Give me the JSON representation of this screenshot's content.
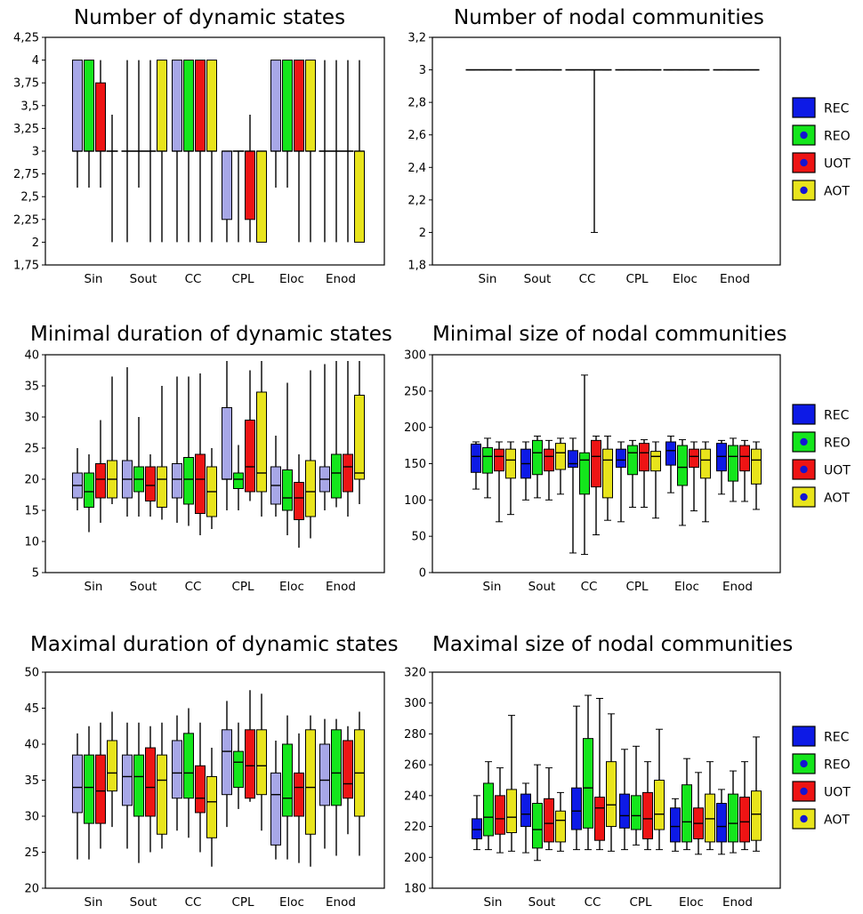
{
  "colors": {
    "REC_light": "#a7a7e7",
    "REC": "#0d1ae6",
    "REO": "#14e61c",
    "UOT": "#ee1414",
    "AOT": "#e8e41c",
    "marker": "#1414d2"
  },
  "legend": {
    "series": [
      "REC",
      "REO",
      "UOT",
      "AOT"
    ]
  },
  "chart_data": [
    {
      "type": "boxplot",
      "title": "Number of dynamic states",
      "yticks": [
        "1,75",
        "2",
        "2,25",
        "2,5",
        "2,75",
        "3",
        "3,25",
        "3,5",
        "3,75",
        "4",
        "4,25"
      ],
      "ylim": [
        1.75,
        4.25
      ],
      "categories": [
        "Sin",
        "Sout",
        "CC",
        "CPL",
        "Eloc",
        "Enod"
      ],
      "series": [
        "REC",
        "REO",
        "UOT",
        "AOT"
      ],
      "rec_style": "light",
      "boxes": [
        [
          [
            2.6,
            3,
            3,
            4,
            4
          ],
          [
            2.6,
            3,
            3,
            4,
            4
          ],
          [
            2.6,
            3,
            3,
            3.75,
            4
          ],
          [
            2,
            3,
            3,
            3,
            3.4
          ]
        ],
        [
          [
            2,
            3,
            3,
            3,
            4
          ],
          [
            2.6,
            3,
            3,
            3,
            4
          ],
          [
            2,
            3,
            3,
            3,
            4
          ],
          [
            2,
            3,
            3,
            4,
            4
          ]
        ],
        [
          [
            2,
            3,
            3,
            4,
            4
          ],
          [
            2,
            3,
            3,
            4,
            4
          ],
          [
            2,
            3,
            3,
            4,
            4
          ],
          [
            2,
            3,
            3,
            4,
            4
          ]
        ],
        [
          [
            2,
            2.25,
            3,
            3,
            3
          ],
          [
            2,
            3,
            3,
            3,
            3
          ],
          [
            2,
            2.25,
            3,
            3,
            3.4
          ],
          [
            2,
            2,
            3,
            3,
            3
          ]
        ],
        [
          [
            2.6,
            3,
            3,
            4,
            4
          ],
          [
            2.6,
            3,
            3,
            4,
            4
          ],
          [
            2,
            3,
            3,
            4,
            4
          ],
          [
            2,
            3,
            3,
            4,
            4
          ]
        ],
        [
          [
            2,
            3,
            3,
            3,
            4
          ],
          [
            2,
            3,
            3,
            3,
            4
          ],
          [
            2,
            3,
            3,
            3,
            4
          ],
          [
            2,
            2,
            3,
            3,
            4
          ]
        ]
      ]
    },
    {
      "type": "boxplot",
      "title": "Number of nodal communities",
      "yticks": [
        "1,8",
        "2",
        "2,2",
        "2,4",
        "2,6",
        "2,8",
        "3",
        "3,2"
      ],
      "ylim": [
        1.8,
        3.2
      ],
      "categories": [
        "Sin",
        "Sout",
        "CC",
        "CPL",
        "Eloc",
        "Enod"
      ],
      "series": [
        "REC",
        "REO",
        "UOT",
        "AOT"
      ],
      "rec_style": "dark",
      "boxes": [
        [
          [
            3,
            3,
            3,
            3,
            3
          ],
          [
            3,
            3,
            3,
            3,
            3
          ],
          [
            3,
            3,
            3,
            3,
            3
          ],
          [
            3,
            3,
            3,
            3,
            3
          ]
        ],
        [
          [
            3,
            3,
            3,
            3,
            3
          ],
          [
            3,
            3,
            3,
            3,
            3
          ],
          [
            3,
            3,
            3,
            3,
            3
          ],
          [
            3,
            3,
            3,
            3,
            3
          ]
        ],
        [
          [
            3,
            3,
            3,
            3,
            3
          ],
          [
            3,
            3,
            3,
            3,
            3
          ],
          [
            2,
            3,
            3,
            3,
            3
          ],
          [
            3,
            3,
            3,
            3,
            3
          ]
        ],
        [
          [
            3,
            3,
            3,
            3,
            3
          ],
          [
            3,
            3,
            3,
            3,
            3
          ],
          [
            3,
            3,
            3,
            3,
            3
          ],
          [
            3,
            3,
            3,
            3,
            3
          ]
        ],
        [
          [
            3,
            3,
            3,
            3,
            3
          ],
          [
            3,
            3,
            3,
            3,
            3
          ],
          [
            3,
            3,
            3,
            3,
            3
          ],
          [
            3,
            3,
            3,
            3,
            3
          ]
        ],
        [
          [
            3,
            3,
            3,
            3,
            3
          ],
          [
            3,
            3,
            3,
            3,
            3
          ],
          [
            3,
            3,
            3,
            3,
            3
          ],
          [
            3,
            3,
            3,
            3,
            3
          ]
        ]
      ]
    },
    {
      "type": "boxplot",
      "title": "Minimal duration of dynamic states",
      "yticks": [
        "5",
        "10",
        "15",
        "20",
        "25",
        "30",
        "35",
        "40"
      ],
      "ylim": [
        5,
        40
      ],
      "categories": [
        "Sin",
        "Sout",
        "CC",
        "CPL",
        "Eloc",
        "Enod"
      ],
      "series": [
        "REC",
        "REO",
        "UOT",
        "AOT"
      ],
      "rec_style": "light",
      "boxes": [
        [
          [
            15,
            17,
            19,
            21,
            25
          ],
          [
            11.5,
            15.5,
            18,
            21,
            24
          ],
          [
            13,
            17,
            20,
            22.5,
            29.5
          ],
          [
            16,
            17,
            20,
            23,
            36.5
          ]
        ],
        [
          [
            14,
            17,
            20,
            23,
            38
          ],
          [
            14,
            18,
            20,
            22,
            30
          ],
          [
            14,
            16.5,
            19,
            22,
            24
          ],
          [
            13.5,
            15.5,
            20,
            22,
            35
          ]
        ],
        [
          [
            13,
            17,
            20,
            22.5,
            36.5
          ],
          [
            12.5,
            16,
            20,
            23.5,
            36.5
          ],
          [
            11,
            14.5,
            20,
            24,
            37
          ],
          [
            12,
            14,
            18,
            22,
            25
          ]
        ],
        [
          [
            15,
            20,
            20,
            31.5,
            39
          ],
          [
            15,
            18.5,
            20,
            21,
            25.5
          ],
          [
            16.5,
            18,
            22,
            29.5,
            37.5
          ],
          [
            14,
            18,
            21,
            34,
            39
          ]
        ],
        [
          [
            14,
            16,
            19,
            22,
            27
          ],
          [
            11,
            15,
            17,
            21.5,
            35.5
          ],
          [
            9,
            13.5,
            17,
            19.5,
            24
          ],
          [
            10.5,
            14,
            18,
            23,
            37.5
          ]
        ],
        [
          [
            15,
            18,
            20,
            22,
            38.5
          ],
          [
            15.5,
            17,
            21,
            24,
            39
          ],
          [
            14,
            18,
            22,
            24,
            39
          ],
          [
            16,
            20,
            21,
            33.5,
            39
          ]
        ]
      ]
    },
    {
      "type": "boxplot",
      "title": "Minimal size of nodal communities",
      "yticks": [
        "0",
        "50",
        "100",
        "150",
        "200",
        "250",
        "300"
      ],
      "ylim": [
        0,
        300
      ],
      "categories": [
        "Sin",
        "Sout",
        "CC",
        "CPL",
        "Eloc",
        "Enod"
      ],
      "series": [
        "REC",
        "REO",
        "UOT",
        "AOT"
      ],
      "rec_style": "dark",
      "boxes": [
        [
          [
            115,
            138,
            160,
            177,
            180
          ],
          [
            103,
            137,
            160,
            172,
            185
          ],
          [
            70,
            140,
            160,
            170,
            180
          ],
          [
            80,
            130,
            155,
            170,
            180
          ]
        ],
        [
          [
            100,
            130,
            150,
            170,
            180
          ],
          [
            103,
            135,
            165,
            182,
            188
          ],
          [
            100,
            140,
            160,
            170,
            182
          ],
          [
            108,
            142,
            165,
            178,
            185
          ]
        ],
        [
          [
            27,
            145,
            150,
            168,
            185
          ],
          [
            25,
            108,
            155,
            165,
            272
          ],
          [
            52,
            118,
            160,
            182,
            188
          ],
          [
            72,
            103,
            155,
            170,
            188
          ]
        ],
        [
          [
            70,
            145,
            155,
            170,
            180
          ],
          [
            90,
            135,
            165,
            175,
            182
          ],
          [
            90,
            140,
            165,
            178,
            183
          ],
          [
            75,
            140,
            160,
            167,
            180
          ]
        ],
        [
          [
            110,
            148,
            168,
            180,
            188
          ],
          [
            65,
            120,
            145,
            175,
            183
          ],
          [
            85,
            145,
            160,
            170,
            180
          ],
          [
            70,
            130,
            155,
            170,
            180
          ]
        ],
        [
          [
            108,
            140,
            160,
            178,
            182
          ],
          [
            98,
            126,
            160,
            175,
            185
          ],
          [
            98,
            140,
            160,
            175,
            182
          ],
          [
            87,
            122,
            155,
            170,
            180
          ]
        ]
      ]
    },
    {
      "type": "boxplot",
      "title": "Maximal duration of dynamic states",
      "yticks": [
        "20",
        "25",
        "30",
        "35",
        "40",
        "45",
        "50"
      ],
      "ylim": [
        20,
        50
      ],
      "categories": [
        "Sin",
        "Sout",
        "CC",
        "CPL",
        "Eloc",
        "Enod"
      ],
      "series": [
        "REC",
        "REO",
        "UOT",
        "AOT"
      ],
      "rec_style": "light",
      "boxes": [
        [
          [
            24,
            30.5,
            34,
            38.5,
            41.5
          ],
          [
            24,
            29,
            34,
            38.5,
            42.5
          ],
          [
            25.5,
            29,
            33.5,
            38.5,
            43
          ],
          [
            28.5,
            33.5,
            36,
            40.5,
            44.5
          ]
        ],
        [
          [
            25.5,
            31.5,
            35.5,
            38.5,
            43
          ],
          [
            23.5,
            30,
            35.5,
            38.5,
            43
          ],
          [
            25,
            30,
            34,
            39.5,
            42.5
          ],
          [
            25.5,
            27.5,
            35,
            38.5,
            43
          ]
        ],
        [
          [
            28,
            32.5,
            36,
            40.5,
            44
          ],
          [
            27,
            32.5,
            36,
            41.5,
            45
          ],
          [
            25,
            30.5,
            32.5,
            37,
            43
          ],
          [
            23,
            27,
            32,
            35.5,
            39.5
          ]
        ],
        [
          [
            28.5,
            33,
            39,
            42,
            46
          ],
          [
            31,
            34,
            37.5,
            39,
            43
          ],
          [
            32,
            32.5,
            37,
            42,
            47.5
          ],
          [
            28,
            33,
            37,
            42,
            47
          ]
        ],
        [
          [
            24,
            26,
            33,
            36,
            40.5
          ],
          [
            24,
            30,
            32.5,
            40,
            44
          ],
          [
            23.5,
            30,
            34,
            36,
            41.5
          ],
          [
            23,
            27.5,
            34,
            42,
            44
          ]
        ],
        [
          [
            25.5,
            31.5,
            35,
            40,
            43.5
          ],
          [
            24.5,
            31.5,
            36,
            42,
            43.5
          ],
          [
            27.5,
            32.5,
            34.5,
            40.5,
            42.5
          ],
          [
            24.5,
            30,
            36,
            42,
            44.5
          ]
        ]
      ]
    },
    {
      "type": "boxplot",
      "title": "Maximal size of nodal communities",
      "yticks": [
        "180",
        "200",
        "220",
        "240",
        "260",
        "280",
        "300",
        "320"
      ],
      "ylim": [
        180,
        320
      ],
      "categories": [
        "Sin",
        "Sout",
        "CC",
        "CPL",
        "Eloc",
        "Enod"
      ],
      "series": [
        "REC",
        "REO",
        "UOT",
        "AOT"
      ],
      "rec_style": "dark",
      "boxes": [
        [
          [
            205,
            212,
            218,
            225,
            240
          ],
          [
            205,
            214,
            226,
            248,
            262
          ],
          [
            203,
            215,
            225,
            240,
            258
          ],
          [
            204,
            216,
            226,
            244,
            292
          ]
        ],
        [
          [
            203,
            220,
            228,
            241,
            248
          ],
          [
            198,
            206,
            218,
            235,
            260
          ],
          [
            205,
            210,
            222,
            238,
            258
          ],
          [
            204,
            210,
            224,
            230,
            242
          ]
        ],
        [
          [
            205,
            218,
            230,
            245,
            298
          ],
          [
            205,
            219,
            245,
            277,
            305
          ],
          [
            205,
            211,
            232,
            239,
            303
          ],
          [
            204,
            220,
            234,
            262,
            293
          ]
        ],
        [
          [
            205,
            219,
            227,
            241,
            270
          ],
          [
            208,
            218,
            227,
            240,
            272
          ],
          [
            205,
            212,
            225,
            242,
            262
          ],
          [
            205,
            218,
            228,
            250,
            283
          ]
        ],
        [
          [
            204,
            210,
            220,
            232,
            238
          ],
          [
            205,
            210,
            223,
            247,
            264
          ],
          [
            202,
            212,
            222,
            232,
            255
          ],
          [
            205,
            210,
            225,
            241,
            262
          ]
        ],
        [
          [
            202,
            210,
            220,
            235,
            244
          ],
          [
            203,
            210,
            222,
            241,
            256
          ],
          [
            205,
            210,
            223,
            239,
            262
          ],
          [
            204,
            211,
            228,
            243,
            278
          ]
        ]
      ]
    }
  ]
}
